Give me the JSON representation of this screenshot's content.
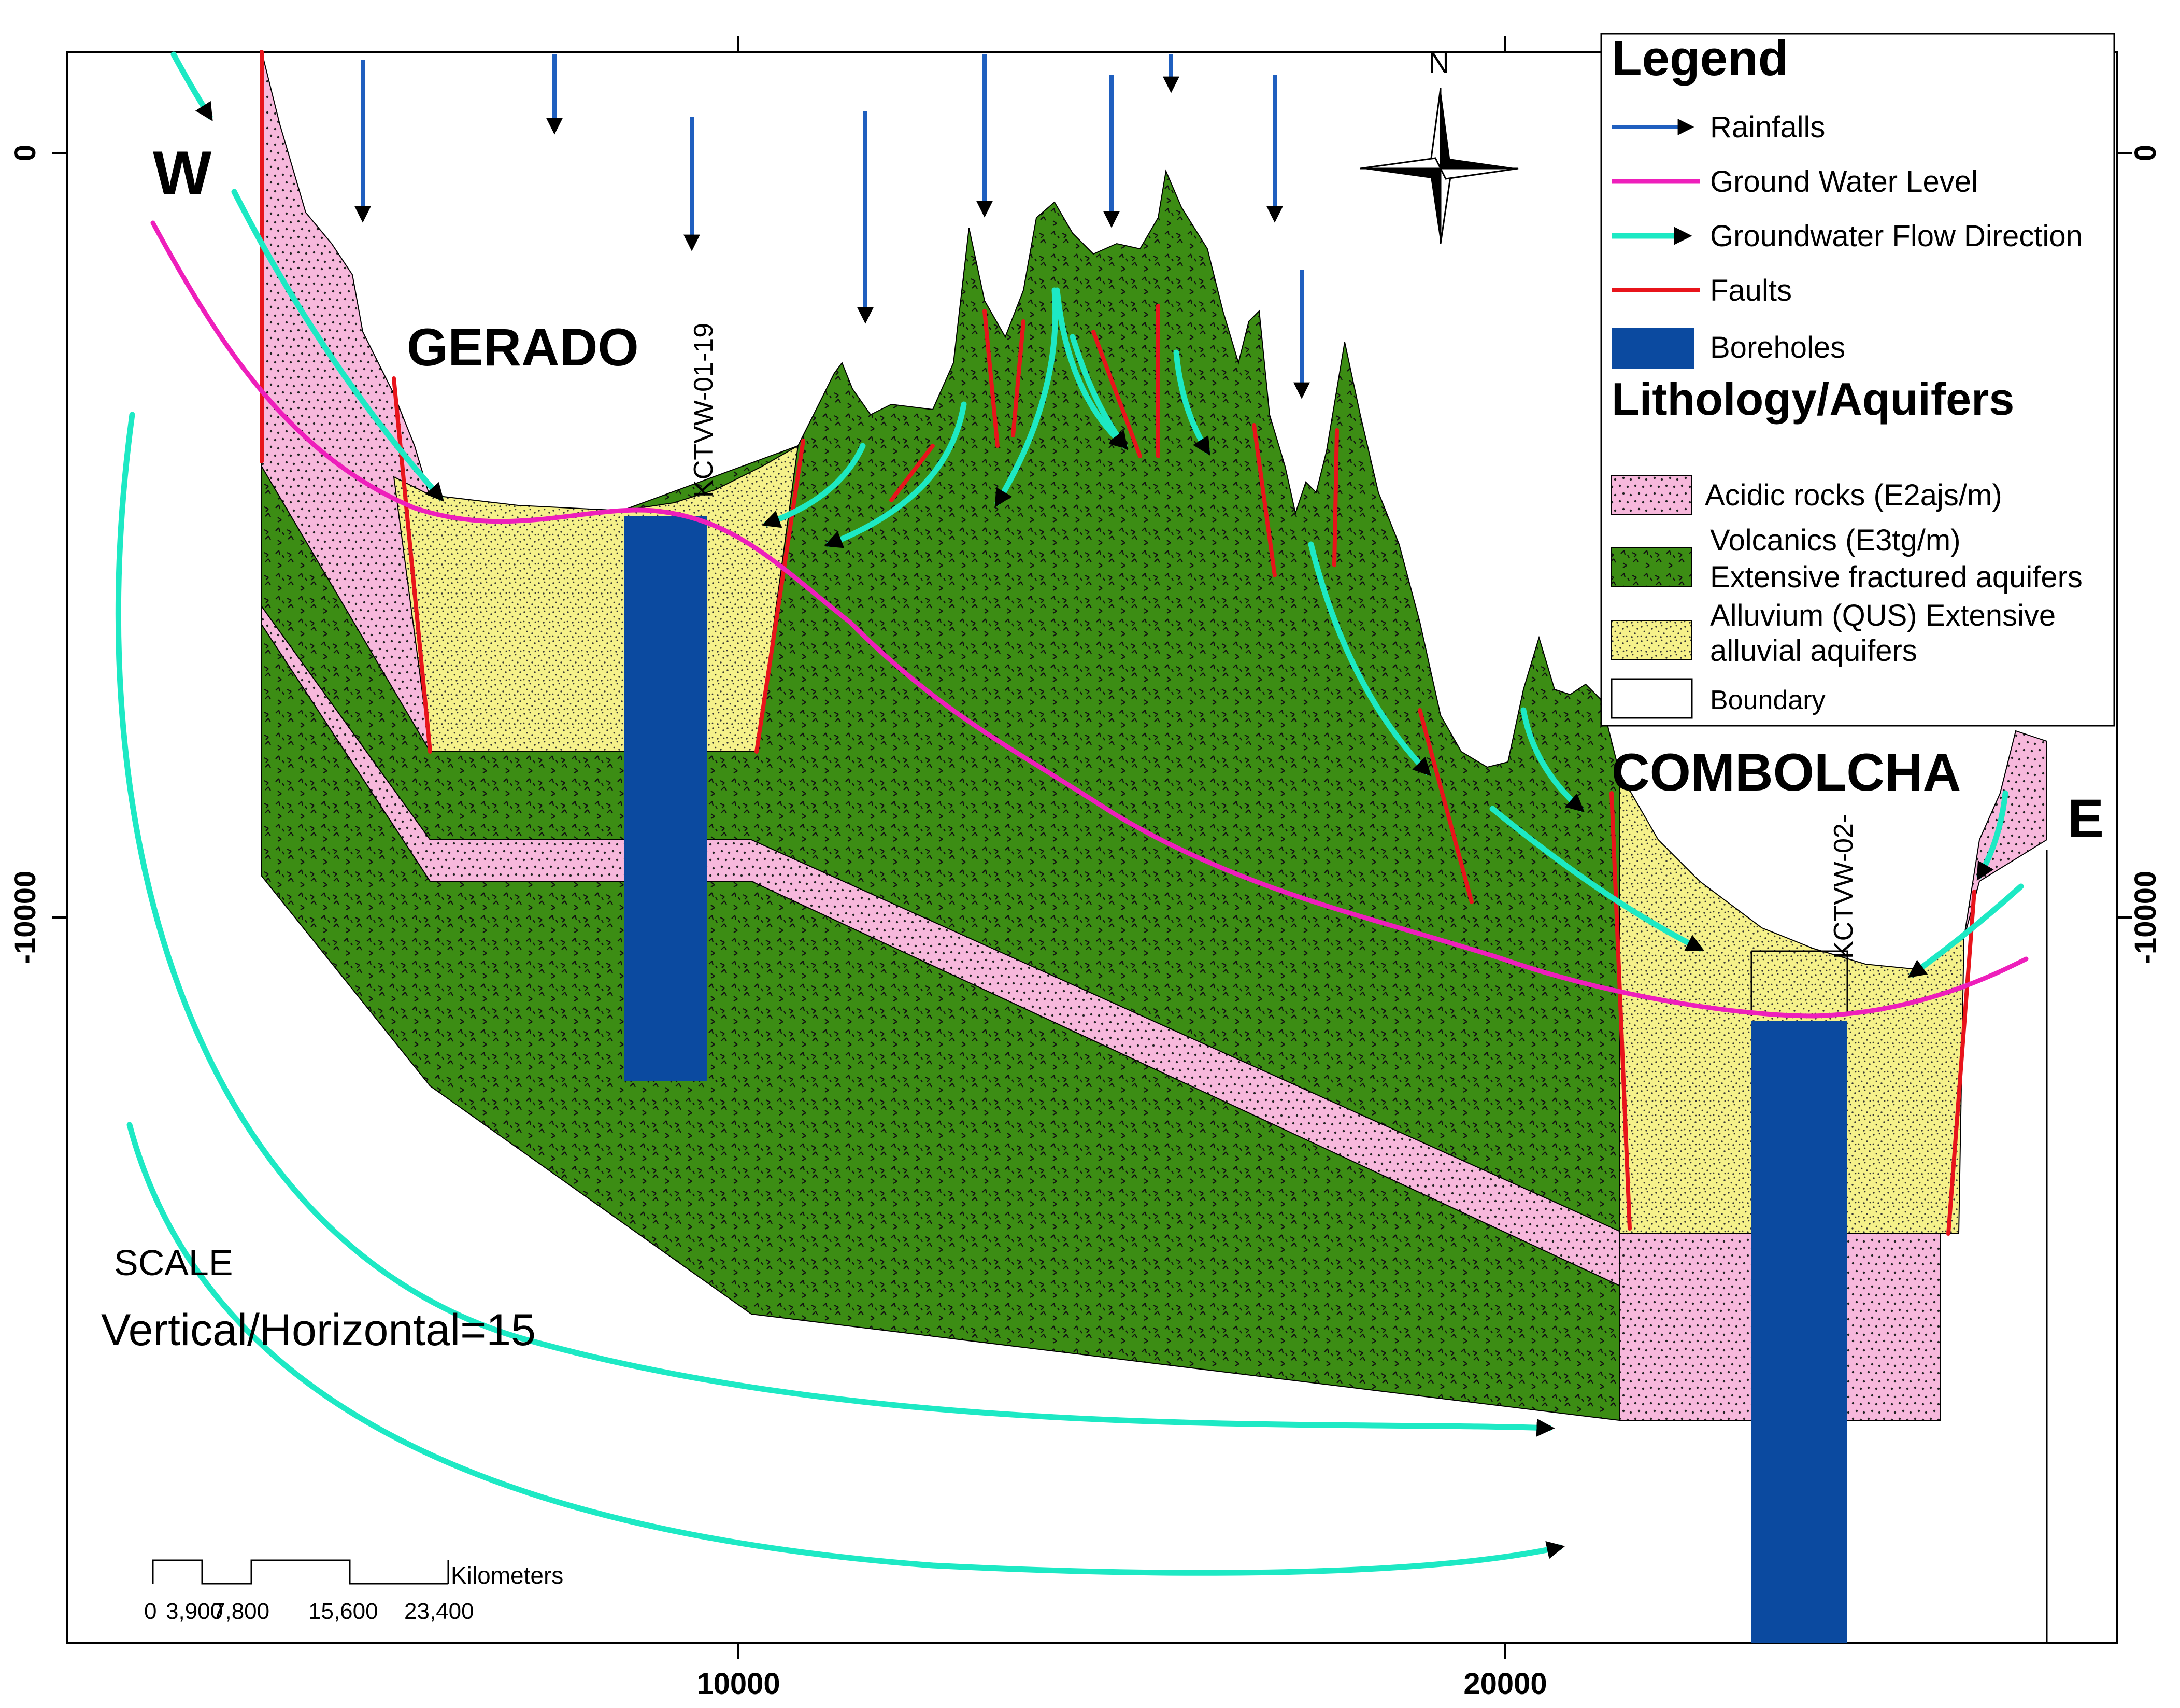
{
  "axes": {
    "bottom_ticks": [
      "10000",
      "20000"
    ],
    "left_ticks": [
      "0",
      "-10000"
    ],
    "right_ticks": [
      "0",
      "-10000"
    ]
  },
  "labels": {
    "west": "W",
    "east": "E",
    "gerado": "GERADO",
    "combolcha": "COMBOLCHA",
    "borehole_1": "KCTVW-01-19",
    "borehole_2": "KCTVW-02-",
    "compass_north": "N",
    "scale_title": "SCALE",
    "scale_ratio": "Vertical/Horizontal=15"
  },
  "scalebar": {
    "unit": "Kilometers",
    "ticks": [
      "0",
      "3,900",
      "7,800",
      "15,600",
      "23,400"
    ]
  },
  "legend": {
    "title": "Legend",
    "items": [
      {
        "label": "Rainfalls",
        "color": "#1f5fbf"
      },
      {
        "label": "Ground Water Level",
        "color": "#ee1fbb"
      },
      {
        "label": "Groundwater Flow Direction",
        "color": "#1de9c4"
      },
      {
        "label": "Faults",
        "color": "#e8141b"
      },
      {
        "label": "Boreholes",
        "color": "#0b4aa0"
      }
    ],
    "lithology_title": "Lithology/Aquifers",
    "lithology": [
      {
        "lines": [
          "Acidic rocks (E2ajs/m)"
        ],
        "color": "#f7b8dc"
      },
      {
        "lines": [
          "Volcanics (E3tg/m)",
          "Extensive fractured aquifers"
        ],
        "color": "#3c8d14"
      },
      {
        "lines": [
          "Alluvium (QUS) Extensive",
          "alluvial aquifers"
        ],
        "color": "#f5f18a"
      },
      {
        "lines": [
          "Boundary"
        ],
        "color": "#ffffff"
      }
    ]
  },
  "colors": {
    "acidic": "#f7b8dc",
    "volcanic": "#3c8d14",
    "alluvium": "#f5f18a",
    "rain": "#1f5fbf",
    "gwl": "#ee1fbb",
    "flow": "#1de9c4",
    "fault": "#e8141b",
    "borehole": "#0b4aa0"
  }
}
